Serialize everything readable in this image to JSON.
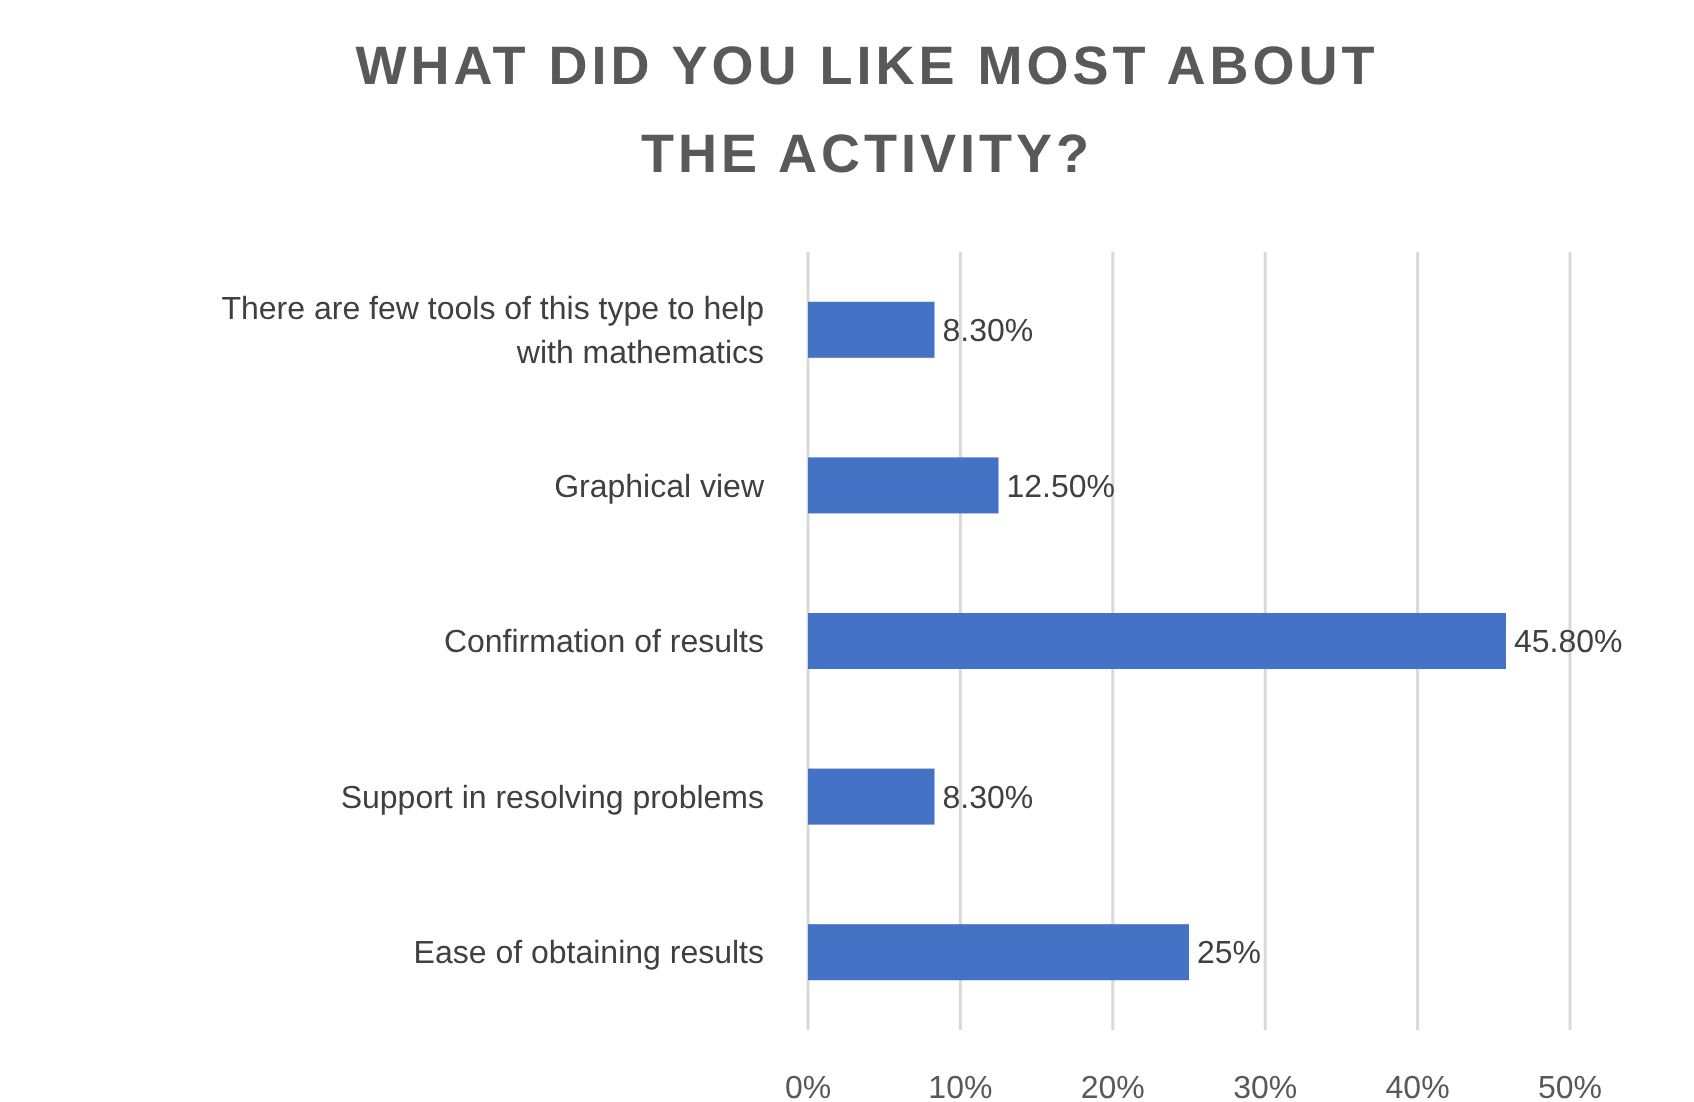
{
  "chart_data": {
    "type": "bar",
    "orientation": "horizontal",
    "title": "WHAT DID YOU LIKE MOST ABOUT THE ACTIVITY?",
    "categories": [
      "There are few tools of this type to help with mathematics",
      "Graphical view",
      "Confirmation of results",
      "Support in resolving problems",
      "Ease of obtaining results"
    ],
    "values": [
      8.3,
      12.5,
      45.8,
      8.3,
      25
    ],
    "value_labels": [
      "8.30%",
      "12.50%",
      "45.80%",
      "8.30%",
      "25%"
    ],
    "color": "#4472c4",
    "xlim": [
      0,
      50
    ],
    "xticks": [
      {
        "value": 0,
        "label": "0%"
      },
      {
        "value": 10,
        "label": "10%"
      },
      {
        "value": 20,
        "label": "20%"
      },
      {
        "value": 30,
        "label": "30%"
      },
      {
        "value": 40,
        "label": "40%"
      },
      {
        "value": 50,
        "label": "50%"
      }
    ],
    "grid": "x"
  }
}
